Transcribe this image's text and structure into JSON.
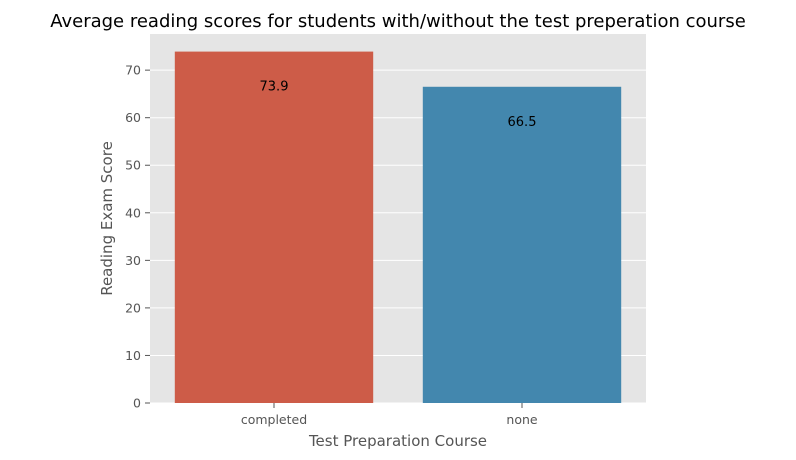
{
  "chart_data": {
    "type": "bar",
    "title": "Average reading scores for students with/without the test preperation course",
    "xlabel": "Test Preparation Course",
    "ylabel": "Reading Exam Score",
    "categories": [
      "completed",
      "none"
    ],
    "values": [
      73.9,
      66.5
    ],
    "data_labels": [
      "73.9",
      "66.5"
    ],
    "bar_colors": [
      "#cd5c48",
      "#4387ae"
    ],
    "ylim": [
      0,
      77.6
    ],
    "yticks": [
      0,
      10,
      20,
      30,
      40,
      50,
      60,
      70
    ],
    "grid": true,
    "legend": "none",
    "style": {
      "plot_background": "#e5e5e5",
      "grid_color": "#ffffff",
      "tick_color": "#555555"
    }
  }
}
